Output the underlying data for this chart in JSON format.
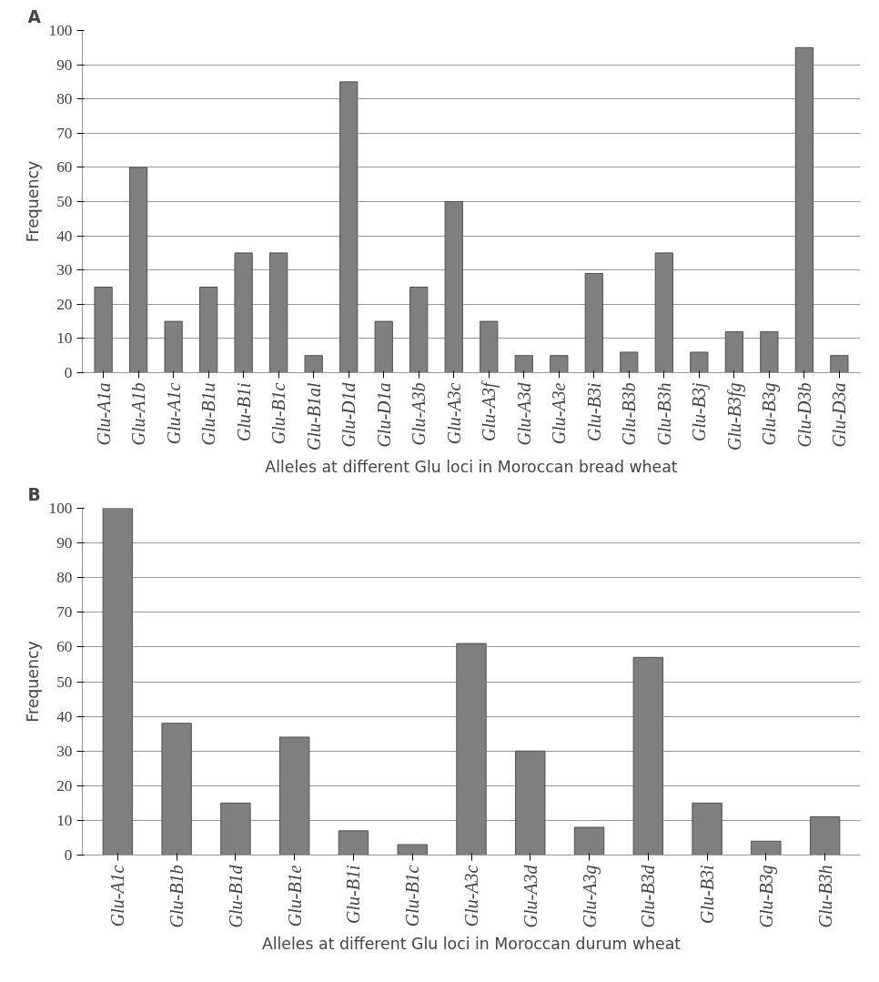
{
  "chart_data": [
    {
      "type": "bar",
      "annotations": [
        "A"
      ],
      "xlabel": "Alleles at different Glu loci in Moroccan bread wheat",
      "ylabel": "Frequency",
      "categories": [
        "Glu-A1a",
        "Glu-A1b",
        "Glu-A1c",
        "Glu-B1u",
        "Glu-B1i",
        "Glu-B1c",
        "Glu-B1al",
        "Glu-D1d",
        "Glu-D1a",
        "Glu-A3b",
        "Glu-A3c",
        "Glu-A3f",
        "Glu-A3d",
        "Glu-A3e",
        "Glu-B3i",
        "Glu-B3b",
        "Glu-B3h",
        "Glu-B3j",
        "Glu-B3fg",
        "Glu-B3g",
        "Glu-D3b",
        "Glu-D3a"
      ],
      "values": [
        25,
        60,
        15,
        25,
        35,
        35,
        5,
        85,
        15,
        25,
        50,
        15,
        5,
        5,
        29,
        6,
        35,
        6,
        12,
        12,
        95,
        5
      ],
      "color": "#7f7f7f",
      "ylim": [
        0,
        100
      ],
      "yticks": [
        0,
        10,
        20,
        30,
        40,
        50,
        60,
        70,
        80,
        90,
        100
      ],
      "grid": "y"
    },
    {
      "type": "bar",
      "annotations": [
        "B"
      ],
      "xlabel": "Alleles at different Glu loci in Moroccan durum wheat",
      "ylabel": "Frequency",
      "categories": [
        "Glu-A1c",
        "Glu-B1b",
        "Glu-B1d",
        "Glu-B1e",
        "Glu-B1i",
        "Glu-B1c",
        "Glu-A3c",
        "Glu-A3d",
        "Glu-A3g",
        "Glu-B3d",
        "Glu-B3i",
        "Glu-B3g",
        "Glu-B3h"
      ],
      "values": [
        100,
        38,
        15,
        34,
        7,
        3,
        61,
        30,
        8,
        57,
        15,
        4,
        11
      ],
      "color": "#7f7f7f",
      "ylim": [
        0,
        100
      ],
      "yticks": [
        0,
        10,
        20,
        30,
        40,
        50,
        60,
        70,
        80,
        90,
        100
      ],
      "grid": "y"
    }
  ]
}
